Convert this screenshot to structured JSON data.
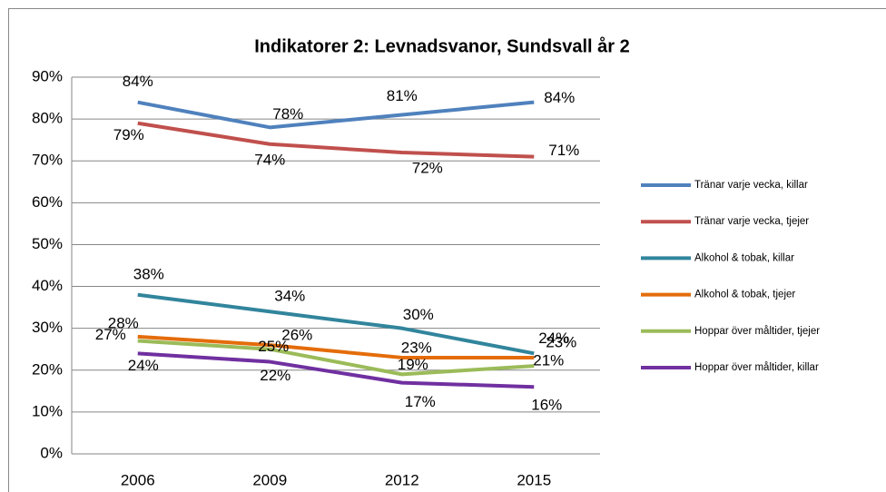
{
  "chart_data": {
    "type": "line",
    "title": "Indikatorer 2: Levnadsvanor, Sundsvall år 2",
    "categories": [
      "2006",
      "2009",
      "2012",
      "2015"
    ],
    "series": [
      {
        "name": "Tränar varje vecka, killar",
        "color": "#4f81bd",
        "values": [
          84,
          78,
          81,
          84
        ],
        "value_labels": [
          "84%",
          "78%",
          "81%",
          "84%"
        ]
      },
      {
        "name": "Tränar varje vecka, tjejer",
        "color": "#c0504d",
        "values": [
          79,
          74,
          72,
          71
        ],
        "value_labels": [
          "79%",
          "74%",
          "72%",
          "71%"
        ]
      },
      {
        "name": "Alkohol & tobak, killar",
        "color": "#31859c",
        "values": [
          38,
          34,
          30,
          24
        ],
        "value_labels": [
          "38%",
          "34%",
          "30%",
          "24%"
        ]
      },
      {
        "name": "Alkohol & tobak, tjejer",
        "color": "#e46c0a",
        "values": [
          28,
          26,
          23,
          23
        ],
        "value_labels": [
          "28%",
          "26%",
          "23%",
          "23%"
        ]
      },
      {
        "name": "Hoppar över måltider, tjejer",
        "color": "#9bbb59",
        "values": [
          27,
          25,
          19,
          21
        ],
        "value_labels": [
          "27%",
          "25%",
          "19%",
          "21%"
        ]
      },
      {
        "name": "Hoppar över måltider, killar",
        "color": "#7030a0",
        "values": [
          24,
          22,
          17,
          16
        ],
        "value_labels": [
          "24%",
          "22%",
          "17%",
          "16%"
        ]
      }
    ],
    "ylim": [
      0,
      90
    ],
    "yticks": [
      {
        "value": 0,
        "label": "0%"
      },
      {
        "value": 10,
        "label": "10%"
      },
      {
        "value": 20,
        "label": "20%"
      },
      {
        "value": 30,
        "label": "30%"
      },
      {
        "value": 40,
        "label": "40%"
      },
      {
        "value": 50,
        "label": "50%"
      },
      {
        "value": 60,
        "label": "60%"
      },
      {
        "value": 70,
        "label": "70%"
      },
      {
        "value": 80,
        "label": "80%"
      },
      {
        "value": 90,
        "label": "90%"
      }
    ],
    "grid": true,
    "legend": "right"
  }
}
